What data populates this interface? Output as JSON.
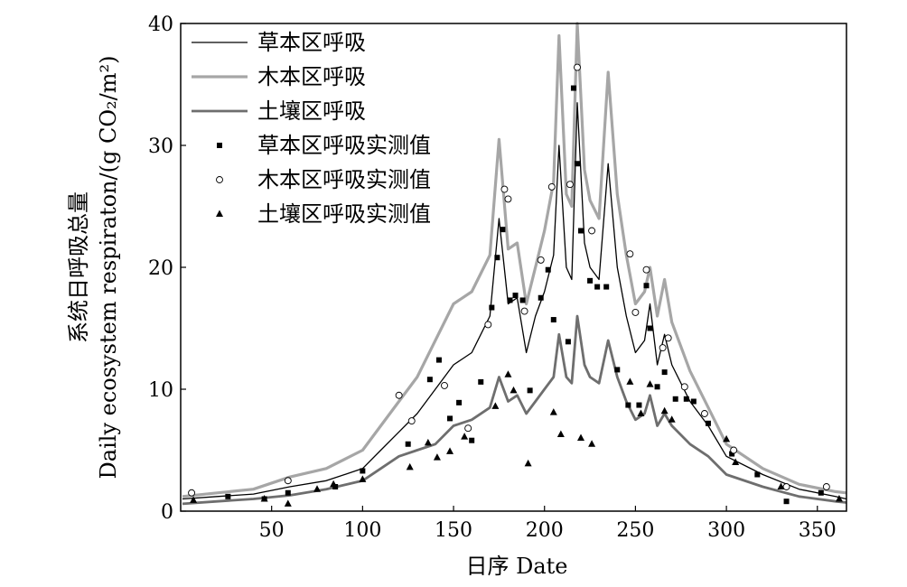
{
  "chart_data": {
    "type": "line",
    "xlabel": "日序 Date",
    "ylabel_cn": "系统日呼吸总量",
    "ylabel_en": "Daily ecosystem respiraton/(g CO₂/m²)",
    "xlim": [
      0,
      366
    ],
    "ylim": [
      0,
      40
    ],
    "xticks": [
      50,
      100,
      150,
      200,
      250,
      300,
      350
    ],
    "yticks": [
      0,
      10,
      20,
      30,
      40
    ],
    "legend_position": "top-left",
    "series": [
      {
        "name": "草本区呼吸",
        "kind": "line",
        "color": "#000000",
        "x": [
          1,
          20,
          40,
          60,
          80,
          100,
          110,
          120,
          130,
          140,
          150,
          160,
          170,
          175,
          180,
          185,
          190,
          195,
          200,
          205,
          208,
          212,
          215,
          218,
          222,
          225,
          230,
          235,
          240,
          245,
          250,
          255,
          258,
          262,
          266,
          270,
          280,
          290,
          300,
          320,
          340,
          360,
          366
        ],
        "values": [
          1.0,
          1.2,
          1.4,
          2.0,
          2.5,
          3.5,
          5.0,
          6.5,
          8.0,
          10.0,
          12.0,
          13.0,
          16.0,
          24.0,
          17.0,
          17.5,
          13.0,
          16.0,
          18.0,
          21.0,
          30.0,
          20.0,
          19.0,
          33.5,
          22.0,
          20.0,
          19.0,
          28.5,
          20.0,
          16.0,
          13.0,
          14.0,
          17.0,
          12.0,
          14.5,
          12.0,
          9.0,
          7.0,
          4.5,
          3.0,
          1.8,
          1.2,
          1.0
        ]
      },
      {
        "name": "木本区呼吸",
        "kind": "line",
        "color": "#a6a6a6",
        "x": [
          1,
          20,
          40,
          60,
          80,
          100,
          110,
          120,
          130,
          140,
          150,
          160,
          170,
          175,
          180,
          185,
          190,
          195,
          200,
          205,
          208,
          212,
          215,
          218,
          222,
          225,
          230,
          235,
          240,
          245,
          250,
          255,
          258,
          262,
          266,
          270,
          280,
          290,
          300,
          320,
          340,
          360,
          366
        ],
        "values": [
          1.2,
          1.5,
          1.8,
          2.8,
          3.5,
          5.0,
          7.0,
          9.0,
          11.0,
          14.0,
          17.0,
          18.0,
          21.0,
          30.5,
          21.5,
          22.0,
          17.0,
          20.0,
          23.0,
          27.0,
          39.0,
          26.0,
          25.0,
          40.0,
          28.0,
          25.5,
          24.0,
          36.0,
          26.0,
          21.0,
          17.0,
          18.0,
          20.0,
          16.0,
          19.0,
          15.5,
          11.5,
          8.5,
          5.5,
          3.5,
          2.2,
          1.6,
          1.5
        ]
      },
      {
        "name": "土壤区呼吸",
        "kind": "line",
        "color": "#6e6e6e",
        "x": [
          1,
          20,
          40,
          60,
          80,
          100,
          110,
          120,
          130,
          140,
          150,
          160,
          170,
          175,
          180,
          185,
          190,
          195,
          200,
          205,
          208,
          212,
          215,
          218,
          222,
          225,
          230,
          235,
          240,
          245,
          250,
          255,
          258,
          262,
          266,
          270,
          280,
          290,
          300,
          320,
          340,
          360,
          366
        ],
        "values": [
          0.6,
          0.8,
          1.0,
          1.3,
          1.8,
          2.5,
          3.5,
          4.5,
          5.0,
          5.5,
          7.0,
          7.5,
          8.5,
          11.0,
          9.0,
          9.5,
          8.0,
          9.0,
          10.0,
          11.0,
          14.5,
          11.0,
          10.5,
          16.0,
          12.0,
          11.0,
          10.5,
          14.0,
          11.0,
          9.0,
          7.5,
          8.0,
          9.5,
          7.0,
          8.0,
          7.0,
          5.5,
          4.5,
          3.0,
          2.0,
          1.2,
          0.8,
          0.7
        ]
      },
      {
        "name": "草本区呼吸实测值",
        "kind": "scatter",
        "marker": "square",
        "color": "#000000",
        "x": [
          26,
          46,
          59,
          85,
          100,
          125,
          137,
          142,
          148,
          153,
          160,
          165,
          171,
          174,
          177,
          181,
          184,
          188,
          192,
          198,
          202,
          205,
          213,
          216,
          218,
          220,
          225,
          229,
          234,
          240,
          246,
          252,
          256,
          258,
          262,
          266,
          272,
          278,
          282,
          290,
          303,
          317,
          333,
          352
        ],
        "values": [
          1.2,
          1.0,
          1.5,
          2.0,
          3.3,
          5.5,
          10.8,
          12.4,
          7.6,
          8.9,
          5.8,
          10.6,
          16.7,
          20.8,
          23.1,
          17.3,
          17.7,
          17.3,
          9.9,
          17.5,
          19.8,
          15.7,
          13.9,
          34.7,
          28.5,
          23.0,
          18.9,
          18.4,
          18.4,
          11.6,
          8.7,
          8.7,
          18.5,
          15.0,
          10.2,
          11.4,
          9.2,
          9.2,
          9.0,
          7.2,
          4.7,
          3.0,
          0.8,
          1.5
        ]
      },
      {
        "name": "木本区呼吸实测值",
        "kind": "scatter",
        "marker": "circle",
        "color": "#ffffff",
        "x": [
          6,
          59,
          120,
          127,
          145,
          158,
          169,
          178,
          180,
          189,
          198,
          204,
          214,
          218,
          226,
          247,
          250,
          256,
          265,
          268,
          277,
          288,
          304,
          333,
          355
        ],
        "values": [
          1.5,
          2.5,
          9.5,
          7.4,
          10.3,
          6.8,
          15.3,
          26.4,
          25.6,
          16.4,
          20.6,
          26.6,
          26.8,
          36.4,
          23.0,
          21.1,
          16.3,
          19.8,
          13.4,
          14.2,
          10.2,
          8.0,
          5.0,
          2.0,
          2.0
        ]
      },
      {
        "name": "土壤区呼吸实测值",
        "kind": "scatter",
        "marker": "triangle",
        "color": "#000000",
        "x": [
          7,
          46,
          59,
          75,
          84,
          100,
          126,
          136,
          141,
          148,
          156,
          173,
          180,
          183,
          191,
          205,
          209,
          220,
          226,
          247,
          253,
          258,
          266,
          270,
          300,
          305,
          330,
          362
        ],
        "values": [
          0.9,
          1.0,
          0.6,
          1.8,
          2.2,
          2.6,
          3.6,
          5.6,
          4.4,
          4.9,
          6.1,
          8.6,
          11.2,
          9.9,
          3.9,
          8.1,
          6.3,
          6.0,
          5.5,
          10.6,
          8.0,
          10.4,
          8.2,
          7.5,
          5.9,
          4.0,
          2.0,
          1.0
        ]
      }
    ]
  }
}
